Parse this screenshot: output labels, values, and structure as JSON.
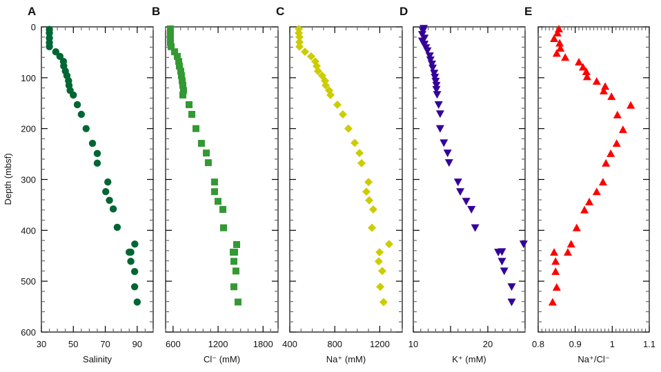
{
  "figure": {
    "ylabel": "Depth (mbsf)",
    "colors": {
      "salinity": "#006633",
      "chloride": "#339933",
      "sodium": "#cccc00",
      "potassium": "#330099",
      "ratio": "#ff0000",
      "axis": "#000000",
      "minor_tick": "#666666"
    }
  },
  "chart_data": [
    {
      "type": "scatter",
      "panel": "A",
      "xlabel": "Salinity",
      "ylabel": "Depth (mbsf)",
      "xlim": [
        30,
        100
      ],
      "ylim": [
        600,
        0
      ],
      "xticks": [
        30,
        50,
        70,
        90
      ],
      "xminor_step": 5,
      "yticks": [
        0,
        100,
        200,
        300,
        400,
        500,
        600
      ],
      "yminor_step": 20,
      "marker": "circle",
      "color": "#006633",
      "grid": false,
      "points": [
        [
          35,
          5
        ],
        [
          35,
          12
        ],
        [
          35,
          22
        ],
        [
          35,
          31
        ],
        [
          35,
          39
        ],
        [
          39,
          49
        ],
        [
          41.6,
          58
        ],
        [
          43.8,
          68
        ],
        [
          44,
          77
        ],
        [
          45,
          87
        ],
        [
          46,
          96
        ],
        [
          47,
          106
        ],
        [
          47.3,
          115
        ],
        [
          48,
          125
        ],
        [
          50,
          134
        ],
        [
          52.5,
          153
        ],
        [
          55,
          172
        ],
        [
          58,
          200
        ],
        [
          62,
          229
        ],
        [
          65,
          249
        ],
        [
          65,
          268
        ],
        [
          71.6,
          305
        ],
        [
          70.3,
          324
        ],
        [
          72.6,
          341
        ],
        [
          75,
          358
        ],
        [
          77.5,
          394
        ],
        [
          88.5,
          427
        ],
        [
          86,
          443
        ],
        [
          85,
          443
        ],
        [
          86,
          461
        ],
        [
          88.4,
          481
        ],
        [
          88.4,
          511
        ],
        [
          90,
          541
        ]
      ]
    },
    {
      "type": "scatter",
      "panel": "B",
      "xlabel": "Cl⁻ (mM)",
      "ylabel": "",
      "xlim": [
        500,
        2000
      ],
      "ylim": [
        600,
        0
      ],
      "xticks": [
        600,
        1200,
        1800
      ],
      "xminor_step": 100,
      "yticks": [
        0,
        100,
        200,
        300,
        400,
        500,
        600
      ],
      "yminor_step": 20,
      "marker": "square",
      "color": "#339933",
      "grid": false,
      "points": [
        [
          564,
          4
        ],
        [
          564,
          12
        ],
        [
          564,
          22
        ],
        [
          564,
          31
        ],
        [
          574,
          39
        ],
        [
          620,
          49
        ],
        [
          656,
          58
        ],
        [
          675,
          68
        ],
        [
          684,
          77
        ],
        [
          702,
          87
        ],
        [
          711,
          96
        ],
        [
          721,
          106
        ],
        [
          730,
          115
        ],
        [
          739,
          125
        ],
        [
          730,
          134
        ],
        [
          813,
          153
        ],
        [
          850,
          172
        ],
        [
          905,
          200
        ],
        [
          978,
          229
        ],
        [
          1043,
          248
        ],
        [
          1070,
          267
        ],
        [
          1153,
          305
        ],
        [
          1153,
          324
        ],
        [
          1199,
          343
        ],
        [
          1264,
          359
        ],
        [
          1273,
          395
        ],
        [
          1448,
          428
        ],
        [
          1420,
          443
        ],
        [
          1402,
          443
        ],
        [
          1411,
          461
        ],
        [
          1438,
          480
        ],
        [
          1411,
          511
        ],
        [
          1466,
          541
        ]
      ]
    },
    {
      "type": "scatter",
      "panel": "C",
      "xlabel": "Na⁺ (mM)",
      "ylabel": "",
      "xlim": [
        400,
        1400
      ],
      "ylim": [
        600,
        0
      ],
      "xticks": [
        400,
        800,
        1200
      ],
      "xminor_step": 100,
      "yticks": [
        0,
        100,
        200,
        300,
        400,
        500,
        600
      ],
      "yminor_step": 20,
      "marker": "diamond",
      "color": "#cccc00",
      "grid": false,
      "points": [
        [
          480,
          4
        ],
        [
          480,
          12
        ],
        [
          486,
          20
        ],
        [
          486,
          30
        ],
        [
          486,
          39
        ],
        [
          535,
          49
        ],
        [
          590,
          58
        ],
        [
          627,
          68
        ],
        [
          639,
          77
        ],
        [
          651,
          87
        ],
        [
          688,
          96
        ],
        [
          713,
          106
        ],
        [
          719,
          115
        ],
        [
          750,
          125
        ],
        [
          762,
          134
        ],
        [
          823,
          153
        ],
        [
          872,
          172
        ],
        [
          921,
          200
        ],
        [
          977,
          228
        ],
        [
          1020,
          248
        ],
        [
          1038,
          268
        ],
        [
          1100,
          305
        ],
        [
          1081,
          324
        ],
        [
          1106,
          341
        ],
        [
          1142,
          359
        ],
        [
          1130,
          395
        ],
        [
          1283,
          427
        ],
        [
          1198,
          443
        ],
        [
          1191,
          461
        ],
        [
          1222,
          480
        ],
        [
          1204,
          511
        ],
        [
          1234,
          541
        ]
      ]
    },
    {
      "type": "scatter",
      "panel": "D",
      "xlabel": "K⁺ (mM)",
      "ylabel": "",
      "xlim": [
        10,
        25
      ],
      "ylim": [
        600,
        0
      ],
      "xticks": [
        10,
        20
      ],
      "xmajor_unlabeled": [
        15
      ],
      "xminor_step": 1,
      "yticks": [
        0,
        100,
        200,
        300,
        400,
        500,
        600
      ],
      "yminor_step": 20,
      "marker": "triangle-down",
      "color": "#330099",
      "grid": false,
      "points": [
        [
          11.4,
          3
        ],
        [
          11.3,
          8
        ],
        [
          11.2,
          15
        ],
        [
          11.5,
          22
        ],
        [
          11.2,
          28
        ],
        [
          11.5,
          34
        ],
        [
          11.7,
          41
        ],
        [
          11.9,
          47
        ],
        [
          12.2,
          57
        ],
        [
          12.3,
          65
        ],
        [
          12.5,
          73
        ],
        [
          12.6,
          81
        ],
        [
          12.8,
          91
        ],
        [
          12.9,
          99
        ],
        [
          13.0,
          107
        ],
        [
          13.1,
          115
        ],
        [
          13.1,
          123
        ],
        [
          13.2,
          133
        ],
        [
          13.4,
          153
        ],
        [
          13.6,
          171
        ],
        [
          13.6,
          200
        ],
        [
          14.1,
          228
        ],
        [
          14.6,
          248
        ],
        [
          14.8,
          267
        ],
        [
          16.0,
          305
        ],
        [
          16.3,
          324
        ],
        [
          17.1,
          343
        ],
        [
          17.8,
          359
        ],
        [
          18.3,
          395
        ],
        [
          24.8,
          427
        ],
        [
          21.4,
          443
        ],
        [
          21.9,
          442
        ],
        [
          21.9,
          461
        ],
        [
          22.2,
          480
        ],
        [
          23.2,
          511
        ],
        [
          23.2,
          541
        ]
      ]
    },
    {
      "type": "scatter",
      "panel": "E",
      "xlabel": "Na⁺/Cl⁻",
      "ylabel": "",
      "xlim": [
        0.8,
        1.1
      ],
      "ylim": [
        600,
        0
      ],
      "xticks": [
        0.8,
        0.9,
        1,
        1.1
      ],
      "xminor_step": 0.01,
      "yticks": [
        0,
        100,
        200,
        300,
        400,
        500,
        600
      ],
      "yminor_step": 20,
      "marker": "triangle-up",
      "color": "#ff0000",
      "grid": false,
      "points": [
        [
          0.856,
          4
        ],
        [
          0.852,
          12
        ],
        [
          0.843,
          23
        ],
        [
          0.858,
          32
        ],
        [
          0.86,
          42
        ],
        [
          0.85,
          52
        ],
        [
          0.873,
          60
        ],
        [
          0.91,
          69
        ],
        [
          0.921,
          79
        ],
        [
          0.93,
          88
        ],
        [
          0.932,
          98
        ],
        [
          0.958,
          107
        ],
        [
          0.981,
          117
        ],
        [
          0.977,
          126
        ],
        [
          0.998,
          137
        ],
        [
          1.05,
          154
        ],
        [
          1.014,
          173
        ],
        [
          1.029,
          202
        ],
        [
          1.012,
          229
        ],
        [
          0.996,
          249
        ],
        [
          0.983,
          268
        ],
        [
          0.975,
          305
        ],
        [
          0.958,
          324
        ],
        [
          0.938,
          344
        ],
        [
          0.925,
          360
        ],
        [
          0.904,
          395
        ],
        [
          0.889,
          427
        ],
        [
          0.88,
          443
        ],
        [
          0.843,
          443
        ],
        [
          0.847,
          461
        ],
        [
          0.847,
          481
        ],
        [
          0.85,
          512
        ],
        [
          0.839,
          541
        ]
      ]
    }
  ]
}
